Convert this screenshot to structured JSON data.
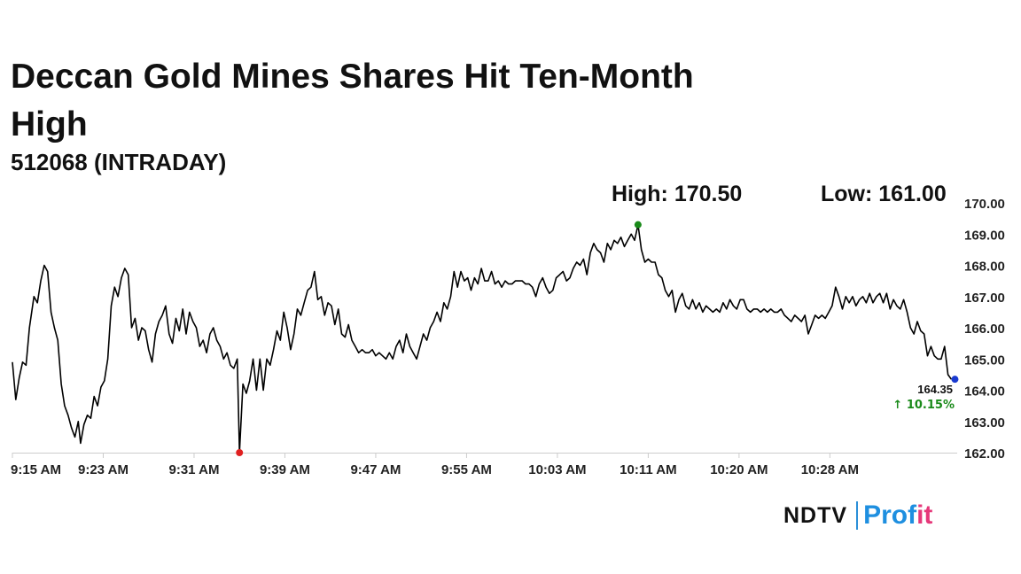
{
  "header": {
    "title": "Deccan Gold Mines Shares Hit Ten-Month High",
    "subtitle": "512068 (INTRADAY)",
    "high_label": "High: 170.50",
    "low_label": "Low: 161.00"
  },
  "logo": {
    "ndtv": "NDTV",
    "profit_a": "Prof",
    "profit_b": "it"
  },
  "chart_data": {
    "type": "line",
    "title": "Deccan Gold Mines Shares Hit Ten-Month High",
    "subtitle": "512068 (INTRADAY)",
    "xlabel": "",
    "ylabel": "",
    "ylim": [
      162,
      170
    ],
    "xlim_minutes": [
      0,
      80
    ],
    "y_ticks": [
      "170.00",
      "169.00",
      "168.00",
      "167.00",
      "166.00",
      "165.00",
      "164.00",
      "163.00",
      "162.00"
    ],
    "y_tick_values": [
      170,
      169,
      168,
      167,
      166,
      165,
      164,
      163,
      162
    ],
    "x_ticks": [
      "9:15 AM",
      "9:23 AM",
      "9:31 AM",
      "9:39 AM",
      "9:47 AM",
      "9:55 AM",
      "10:03 AM",
      "10:11 AM",
      "10:20 AM",
      "10:28 AM"
    ],
    "x_tick_minutes": [
      0,
      8,
      16,
      24,
      32,
      40,
      48,
      56,
      64,
      72
    ],
    "last_value_label": "164.35",
    "change_label": "10.15%",
    "change_color": "#1a8a1a",
    "line_color": "#000000",
    "high_marker_color": "#1a8a1a",
    "low_marker_color": "#e02020",
    "last_marker_color": "#1a3ad0",
    "series": [
      {
        "points": [
          [
            0,
            164.9
          ],
          [
            0.3,
            163.7
          ],
          [
            0.6,
            164.4
          ],
          [
            0.9,
            164.9
          ],
          [
            1.2,
            164.8
          ],
          [
            1.5,
            166.0
          ],
          [
            1.9,
            167.0
          ],
          [
            2.2,
            166.8
          ],
          [
            2.5,
            167.5
          ],
          [
            2.8,
            168.0
          ],
          [
            3.1,
            167.8
          ],
          [
            3.4,
            166.5
          ],
          [
            3.7,
            166.0
          ],
          [
            4.0,
            165.6
          ],
          [
            4.3,
            164.2
          ],
          [
            4.6,
            163.5
          ],
          [
            4.9,
            163.2
          ],
          [
            5.2,
            162.8
          ],
          [
            5.5,
            162.5
          ],
          [
            5.8,
            163.0
          ],
          [
            6.0,
            162.3
          ],
          [
            6.3,
            162.9
          ],
          [
            6.6,
            163.2
          ],
          [
            6.9,
            163.1
          ],
          [
            7.2,
            163.8
          ],
          [
            7.5,
            163.5
          ],
          [
            7.8,
            164.1
          ],
          [
            8.1,
            164.3
          ],
          [
            8.4,
            165.0
          ],
          [
            8.7,
            166.7
          ],
          [
            9.0,
            167.3
          ],
          [
            9.3,
            167.0
          ],
          [
            9.6,
            167.6
          ],
          [
            9.9,
            167.9
          ],
          [
            10.2,
            167.7
          ],
          [
            10.5,
            166.0
          ],
          [
            10.8,
            166.3
          ],
          [
            11.1,
            165.6
          ],
          [
            11.4,
            166.0
          ],
          [
            11.7,
            165.9
          ],
          [
            12.0,
            165.3
          ],
          [
            12.3,
            164.9
          ],
          [
            12.6,
            165.8
          ],
          [
            12.9,
            166.2
          ],
          [
            13.2,
            166.4
          ],
          [
            13.5,
            166.7
          ],
          [
            13.8,
            165.8
          ],
          [
            14.1,
            165.5
          ],
          [
            14.4,
            166.3
          ],
          [
            14.7,
            165.9
          ],
          [
            15.0,
            166.6
          ],
          [
            15.3,
            165.8
          ],
          [
            15.6,
            166.5
          ],
          [
            15.9,
            166.2
          ],
          [
            16.2,
            166.0
          ],
          [
            16.5,
            165.4
          ],
          [
            16.8,
            165.6
          ],
          [
            17.1,
            165.2
          ],
          [
            17.4,
            165.8
          ],
          [
            17.7,
            166.0
          ],
          [
            18.0,
            165.6
          ],
          [
            18.3,
            165.4
          ],
          [
            18.6,
            165.0
          ],
          [
            18.9,
            165.2
          ],
          [
            19.2,
            164.8
          ],
          [
            19.5,
            164.7
          ],
          [
            19.8,
            165.0
          ],
          [
            20.0,
            162.0
          ],
          [
            20.3,
            164.2
          ],
          [
            20.6,
            163.9
          ],
          [
            20.9,
            164.3
          ],
          [
            21.2,
            165.0
          ],
          [
            21.5,
            164.0
          ],
          [
            21.8,
            165.0
          ],
          [
            22.1,
            164.0
          ],
          [
            22.4,
            165.0
          ],
          [
            22.7,
            164.8
          ],
          [
            23.0,
            165.3
          ],
          [
            23.3,
            165.9
          ],
          [
            23.6,
            165.6
          ],
          [
            23.9,
            166.5
          ],
          [
            24.2,
            166.0
          ],
          [
            24.5,
            165.3
          ],
          [
            24.8,
            165.8
          ],
          [
            25.1,
            166.6
          ],
          [
            25.4,
            166.4
          ],
          [
            25.7,
            166.8
          ],
          [
            26.0,
            167.2
          ],
          [
            26.3,
            167.3
          ],
          [
            26.6,
            167.8
          ],
          [
            26.9,
            166.9
          ],
          [
            27.2,
            167.0
          ],
          [
            27.5,
            166.4
          ],
          [
            27.8,
            166.8
          ],
          [
            28.1,
            166.7
          ],
          [
            28.4,
            166.1
          ],
          [
            28.7,
            166.6
          ],
          [
            29.0,
            165.8
          ],
          [
            29.3,
            165.7
          ],
          [
            29.6,
            166.1
          ],
          [
            29.9,
            165.6
          ],
          [
            30.2,
            165.4
          ],
          [
            30.5,
            165.2
          ],
          [
            30.8,
            165.3
          ],
          [
            31.1,
            165.2
          ],
          [
            31.4,
            165.2
          ],
          [
            31.7,
            165.3
          ],
          [
            32.0,
            165.1
          ],
          [
            32.3,
            165.2
          ],
          [
            32.6,
            165.1
          ],
          [
            32.9,
            165.0
          ],
          [
            33.2,
            165.2
          ],
          [
            33.5,
            165.0
          ],
          [
            33.8,
            165.4
          ],
          [
            34.1,
            165.6
          ],
          [
            34.4,
            165.2
          ],
          [
            34.7,
            165.8
          ],
          [
            35.0,
            165.4
          ],
          [
            35.3,
            165.2
          ],
          [
            35.6,
            165.0
          ],
          [
            35.9,
            165.4
          ],
          [
            36.2,
            165.8
          ],
          [
            36.5,
            165.6
          ],
          [
            36.8,
            166.0
          ],
          [
            37.1,
            166.2
          ],
          [
            37.4,
            166.5
          ],
          [
            37.7,
            166.2
          ],
          [
            38.0,
            166.8
          ],
          [
            38.3,
            166.6
          ],
          [
            38.6,
            167.0
          ],
          [
            38.9,
            167.8
          ],
          [
            39.2,
            167.3
          ],
          [
            39.5,
            167.8
          ],
          [
            39.8,
            167.5
          ],
          [
            40.1,
            167.6
          ],
          [
            40.4,
            167.2
          ],
          [
            40.7,
            167.6
          ],
          [
            41.0,
            167.4
          ],
          [
            41.3,
            167.9
          ],
          [
            41.6,
            167.5
          ],
          [
            41.9,
            167.5
          ],
          [
            42.2,
            167.8
          ],
          [
            42.5,
            167.4
          ],
          [
            42.8,
            167.5
          ],
          [
            43.1,
            167.3
          ],
          [
            43.4,
            167.5
          ],
          [
            43.7,
            167.4
          ],
          [
            44.0,
            167.4
          ],
          [
            44.3,
            167.5
          ],
          [
            44.6,
            167.5
          ],
          [
            44.9,
            167.5
          ],
          [
            45.2,
            167.4
          ],
          [
            45.5,
            167.4
          ],
          [
            45.8,
            167.3
          ],
          [
            46.1,
            167.0
          ],
          [
            46.4,
            167.4
          ],
          [
            46.7,
            167.6
          ],
          [
            47.0,
            167.3
          ],
          [
            47.3,
            167.1
          ],
          [
            47.6,
            167.2
          ],
          [
            47.9,
            167.6
          ],
          [
            48.2,
            167.7
          ],
          [
            48.5,
            167.8
          ],
          [
            48.8,
            167.5
          ],
          [
            49.1,
            167.6
          ],
          [
            49.4,
            167.9
          ],
          [
            49.7,
            168.1
          ],
          [
            50.0,
            168.0
          ],
          [
            50.3,
            168.2
          ],
          [
            50.6,
            167.7
          ],
          [
            50.9,
            168.4
          ],
          [
            51.2,
            168.7
          ],
          [
            51.5,
            168.5
          ],
          [
            51.8,
            168.4
          ],
          [
            52.1,
            168.1
          ],
          [
            52.4,
            168.7
          ],
          [
            52.7,
            168.5
          ],
          [
            53.0,
            168.8
          ],
          [
            53.3,
            168.7
          ],
          [
            53.6,
            168.9
          ],
          [
            53.9,
            168.6
          ],
          [
            54.2,
            168.8
          ],
          [
            54.5,
            169.0
          ],
          [
            54.8,
            168.8
          ],
          [
            55.1,
            169.3
          ],
          [
            55.4,
            168.5
          ],
          [
            55.7,
            168.1
          ],
          [
            56.0,
            168.2
          ],
          [
            56.3,
            168.1
          ],
          [
            56.6,
            168.1
          ],
          [
            56.9,
            167.7
          ],
          [
            57.2,
            167.6
          ],
          [
            57.5,
            167.2
          ],
          [
            57.8,
            167.0
          ],
          [
            58.1,
            167.2
          ],
          [
            58.4,
            166.5
          ],
          [
            58.7,
            166.9
          ],
          [
            59.0,
            167.1
          ],
          [
            59.3,
            166.7
          ],
          [
            59.6,
            166.6
          ],
          [
            59.9,
            166.9
          ],
          [
            60.2,
            166.6
          ],
          [
            60.5,
            166.8
          ],
          [
            60.8,
            166.5
          ],
          [
            61.1,
            166.7
          ],
          [
            61.4,
            166.6
          ],
          [
            61.7,
            166.5
          ],
          [
            62.0,
            166.6
          ],
          [
            62.3,
            166.5
          ],
          [
            62.6,
            166.8
          ],
          [
            62.9,
            166.6
          ],
          [
            63.2,
            166.9
          ],
          [
            63.5,
            166.7
          ],
          [
            63.8,
            166.6
          ],
          [
            64.1,
            166.9
          ],
          [
            64.4,
            166.9
          ],
          [
            64.7,
            166.6
          ],
          [
            65.0,
            166.5
          ],
          [
            65.3,
            166.6
          ],
          [
            65.6,
            166.6
          ],
          [
            65.9,
            166.5
          ],
          [
            66.2,
            166.6
          ],
          [
            66.5,
            166.5
          ],
          [
            66.8,
            166.6
          ],
          [
            67.1,
            166.5
          ],
          [
            67.4,
            166.5
          ],
          [
            67.7,
            166.6
          ],
          [
            68.0,
            166.4
          ],
          [
            68.3,
            166.3
          ],
          [
            68.6,
            166.2
          ],
          [
            68.9,
            166.4
          ],
          [
            69.2,
            166.3
          ],
          [
            69.5,
            166.2
          ],
          [
            69.8,
            166.4
          ],
          [
            70.1,
            165.8
          ],
          [
            70.4,
            166.1
          ],
          [
            70.7,
            166.4
          ],
          [
            71.0,
            166.3
          ],
          [
            71.3,
            166.4
          ],
          [
            71.6,
            166.3
          ],
          [
            71.9,
            166.5
          ],
          [
            72.2,
            166.7
          ],
          [
            72.5,
            167.3
          ],
          [
            72.8,
            167.0
          ],
          [
            73.1,
            166.6
          ],
          [
            73.4,
            167.0
          ],
          [
            73.7,
            166.8
          ],
          [
            74.0,
            167.0
          ],
          [
            74.3,
            166.7
          ],
          [
            74.6,
            166.9
          ],
          [
            74.9,
            167.0
          ],
          [
            75.2,
            166.8
          ],
          [
            75.5,
            167.1
          ],
          [
            75.8,
            166.8
          ],
          [
            76.1,
            167.0
          ],
          [
            76.4,
            167.1
          ],
          [
            76.7,
            166.8
          ],
          [
            77.0,
            167.1
          ],
          [
            77.3,
            166.6
          ],
          [
            77.6,
            166.9
          ],
          [
            77.9,
            166.7
          ],
          [
            78.2,
            166.6
          ],
          [
            78.5,
            166.9
          ],
          [
            78.8,
            166.5
          ],
          [
            79.1,
            166.0
          ],
          [
            79.4,
            165.8
          ],
          [
            79.7,
            166.2
          ],
          [
            80.0,
            165.9
          ],
          [
            80.3,
            165.8
          ],
          [
            80.6,
            165.1
          ],
          [
            80.9,
            165.4
          ],
          [
            81.2,
            165.1
          ],
          [
            81.5,
            165.0
          ],
          [
            81.8,
            165.0
          ],
          [
            82.1,
            165.4
          ],
          [
            82.4,
            164.5
          ],
          [
            82.7,
            164.35
          ]
        ]
      }
    ]
  }
}
